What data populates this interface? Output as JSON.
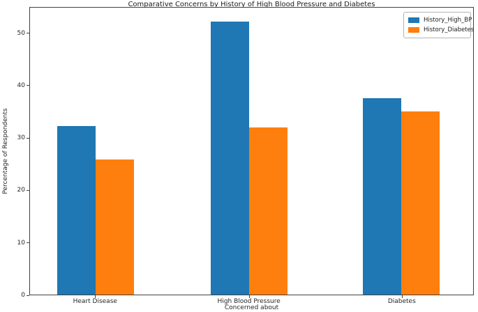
{
  "chart_data": {
    "type": "bar",
    "title": "Comparative Concerns by History of High Blood Pressure and Diabetes",
    "categories": [
      "Heart Disease",
      "High Blood Pressure",
      "Diabetes"
    ],
    "series": [
      {
        "name": "History_High_BP",
        "color": "#1f77b4",
        "values": [
          32.3,
          52.3,
          37.6
        ]
      },
      {
        "name": "History_Diabetes",
        "color": "#ff7f0e",
        "values": [
          25.9,
          32.0,
          35.1
        ]
      }
    ],
    "xlabel": "Concerned about",
    "ylabel": "Percentage of Respondents",
    "ylim": [
      0,
      55
    ],
    "yticks": [
      0,
      10,
      20,
      30,
      40,
      50
    ],
    "legend": {
      "position": "upper right",
      "entries": [
        "History_High_BP",
        "History_Diabetes"
      ]
    },
    "grid": false,
    "background_color": "#ffffff",
    "spine_color": "#404040"
  }
}
